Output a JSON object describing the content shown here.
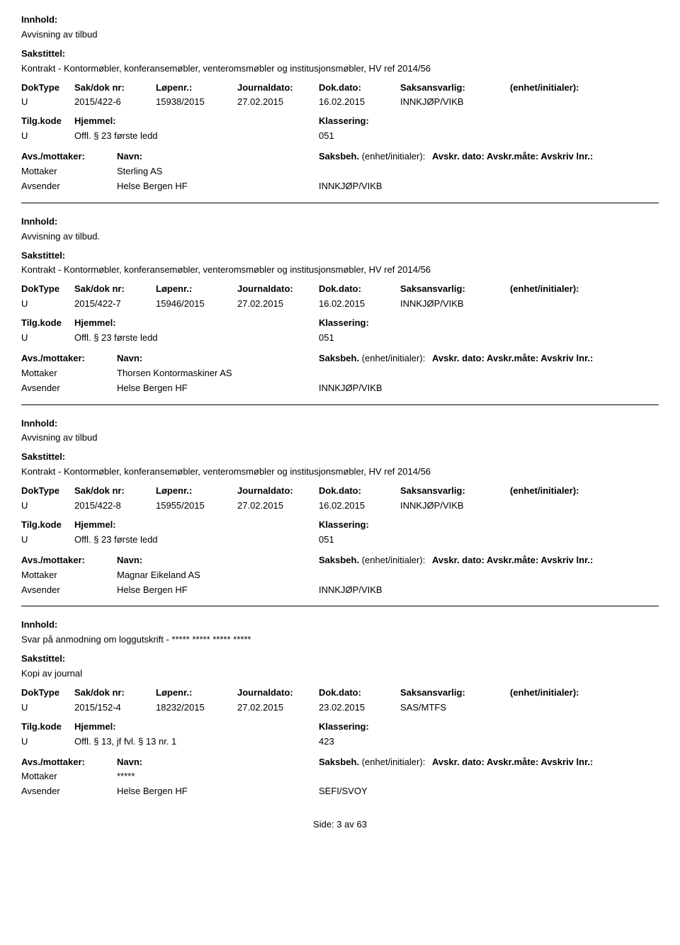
{
  "labels": {
    "innhold": "Innhold:",
    "sakstittel": "Sakstittel:",
    "doktype": "DokType",
    "sakdok": "Sak/dok nr:",
    "lopenr": "Løpenr.:",
    "journaldato": "Journaldato:",
    "dokdato": "Dok.dato:",
    "saksansvarlig": "Saksansvarlig:",
    "enhet": "(enhet/initialer):",
    "tilgkode": "Tilg.kode",
    "hjemmel": "Hjemmel:",
    "klassering": "Klassering:",
    "avsmottaker": "Avs./mottaker:",
    "navn": "Navn:",
    "saksbeh": "Saksbeh.",
    "saksbeh_enh": "(enhet/initialer):",
    "avskr": "Avskr. dato:  Avskr.måte:  Avskriv lnr.:"
  },
  "records": [
    {
      "innhold": "Avvisning av tilbud",
      "sakstittel": "Kontrakt - Kontormøbler, konferansemøbler, venteromsmøbler og institusjonsmøbler, HV ref 2014/56",
      "doktype": "U",
      "sakdok": "2015/422-6",
      "lopenr": "15938/2015",
      "journaldato": "27.02.2015",
      "dokdato": "16.02.2015",
      "saksansvarlig": "INNKJØP/VIKB",
      "tilgkode": "U",
      "hjemmel": "Offl. § 23 første ledd",
      "klassering": "051",
      "parties": [
        {
          "role": "Mottaker",
          "name": "Sterling AS",
          "unit": ""
        },
        {
          "role": "Avsender",
          "name": "Helse Bergen HF",
          "unit": "INNKJØP/VIKB"
        }
      ]
    },
    {
      "innhold": "Avvisning av tilbud.",
      "sakstittel": "Kontrakt - Kontormøbler, konferansemøbler, venteromsmøbler og institusjonsmøbler, HV ref 2014/56",
      "doktype": "U",
      "sakdok": "2015/422-7",
      "lopenr": "15946/2015",
      "journaldato": "27.02.2015",
      "dokdato": "16.02.2015",
      "saksansvarlig": "INNKJØP/VIKB",
      "tilgkode": "U",
      "hjemmel": "Offl. § 23 første ledd",
      "klassering": "051",
      "parties": [
        {
          "role": "Mottaker",
          "name": "Thorsen Kontormaskiner AS",
          "unit": ""
        },
        {
          "role": "Avsender",
          "name": "Helse Bergen HF",
          "unit": "INNKJØP/VIKB"
        }
      ]
    },
    {
      "innhold": "Avvisning av tilbud",
      "sakstittel": "Kontrakt - Kontormøbler, konferansemøbler, venteromsmøbler og institusjonsmøbler, HV ref 2014/56",
      "doktype": "U",
      "sakdok": "2015/422-8",
      "lopenr": "15955/2015",
      "journaldato": "27.02.2015",
      "dokdato": "16.02.2015",
      "saksansvarlig": "INNKJØP/VIKB",
      "tilgkode": "U",
      "hjemmel": "Offl. § 23 første ledd",
      "klassering": "051",
      "parties": [
        {
          "role": "Mottaker",
          "name": "Magnar Eikeland AS",
          "unit": ""
        },
        {
          "role": "Avsender",
          "name": "Helse Bergen HF",
          "unit": "INNKJØP/VIKB"
        }
      ]
    },
    {
      "innhold": "Svar på anmodning om loggutskrift -  ***** ***** ***** *****",
      "sakstittel": "Kopi av journal",
      "doktype": "U",
      "sakdok": "2015/152-4",
      "lopenr": "18232/2015",
      "journaldato": "27.02.2015",
      "dokdato": "23.02.2015",
      "saksansvarlig": "SAS/MTFS",
      "tilgkode": "U",
      "hjemmel": "Offl. § 13, jf fvl. § 13 nr. 1",
      "klassering": "423",
      "parties": [
        {
          "role": "Mottaker",
          "name": "*****",
          "unit": ""
        },
        {
          "role": "Avsender",
          "name": "Helse Bergen HF",
          "unit": "SEFI/SVOY"
        }
      ]
    }
  ],
  "footer": "Side: 3 av 63"
}
